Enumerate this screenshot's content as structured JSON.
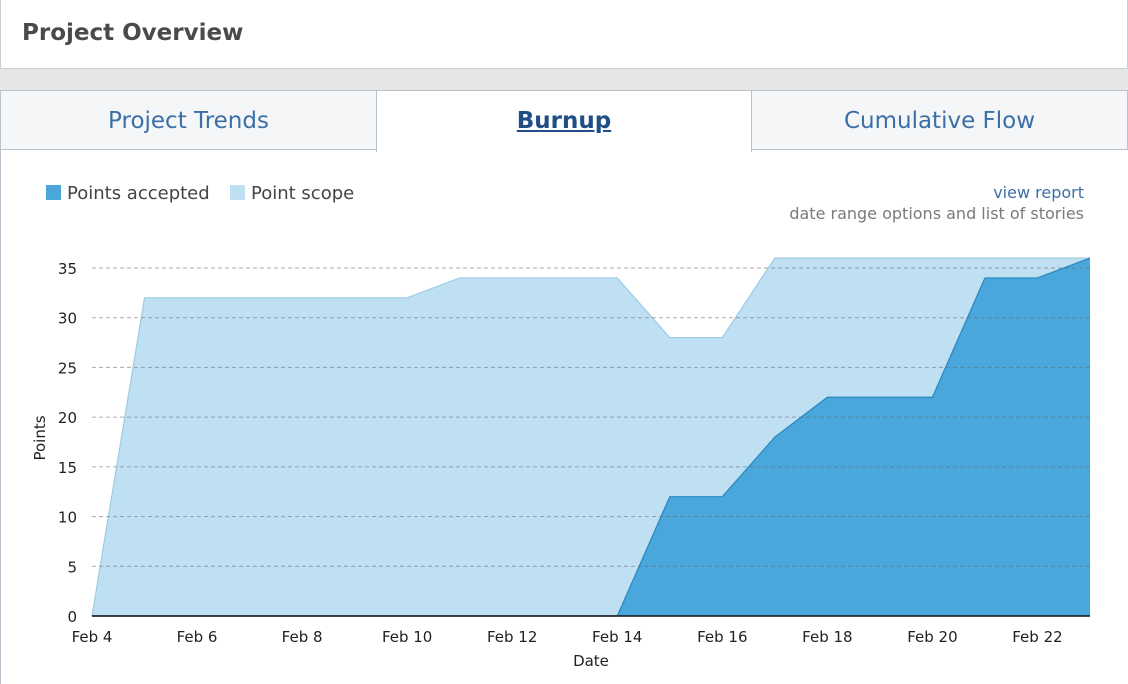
{
  "header": {
    "title": "Project Overview"
  },
  "tabs": [
    {
      "label": "Project Trends"
    },
    {
      "label": "Burnup"
    },
    {
      "label": "Cumulative Flow"
    }
  ],
  "report": {
    "link_label": "view report",
    "description": "date range options and list of stories"
  },
  "colors": {
    "accepted": "#4aa7db",
    "scope": "#bee0f2",
    "accepted_stroke": "#2a86bf",
    "scope_stroke": "#9dcbe6"
  },
  "chart_data": {
    "type": "area",
    "xlabel": "Date",
    "ylabel": "Points",
    "ylim": [
      0,
      35
    ],
    "yticks": [
      0,
      5,
      10,
      15,
      20,
      25,
      30,
      35
    ],
    "x_index_range": [
      0,
      19
    ],
    "xtick_labels": [
      "Feb 4",
      "Feb 6",
      "Feb 8",
      "Feb 10",
      "Feb 12",
      "Feb 14",
      "Feb 16",
      "Feb 18",
      "Feb 20",
      "Feb 22"
    ],
    "xtick_indices": [
      0,
      2,
      4,
      6,
      8,
      10,
      12,
      14,
      16,
      18
    ],
    "dates": [
      "Feb 4",
      "Feb 5",
      "Feb 6",
      "Feb 7",
      "Feb 8",
      "Feb 9",
      "Feb 10",
      "Feb 11",
      "Feb 12",
      "Feb 13",
      "Feb 14",
      "Feb 15",
      "Feb 16",
      "Feb 17",
      "Feb 18",
      "Feb 19",
      "Feb 20",
      "Feb 21",
      "Feb 22",
      "Feb 23"
    ],
    "legend_position": "top-left",
    "grid": true,
    "series": [
      {
        "name": "Point scope",
        "values": [
          0,
          32,
          32,
          32,
          32,
          32,
          32,
          34,
          34,
          34,
          34,
          28,
          28,
          36,
          36,
          36,
          36,
          36,
          36,
          36
        ]
      },
      {
        "name": "Points accepted",
        "values": [
          0,
          0,
          0,
          0,
          0,
          0,
          0,
          0,
          0,
          0,
          0,
          12,
          12,
          18,
          22,
          22,
          22,
          34,
          34,
          36
        ]
      }
    ]
  }
}
